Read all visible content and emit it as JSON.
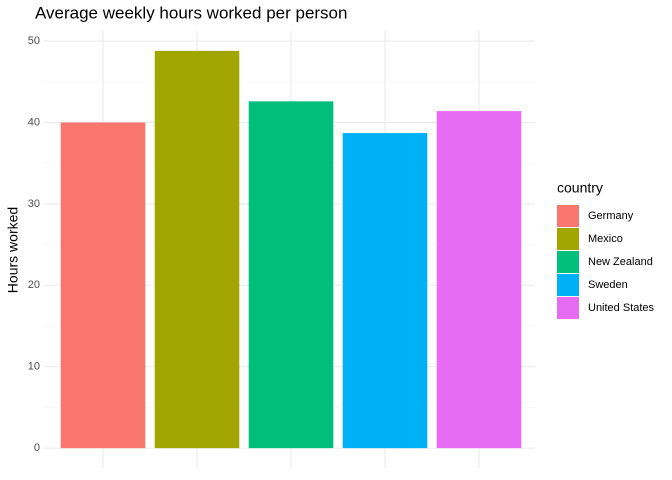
{
  "chart_data": {
    "type": "bar",
    "title": "Average weekly hours worked per person",
    "y_label": "Hours worked",
    "legend_title": "country",
    "series": [
      {
        "name": "Germany",
        "color": "#f8766d",
        "values": [
          40.0
        ]
      },
      {
        "name": "Mexico",
        "color": "#a3a500",
        "values": [
          48.8
        ]
      },
      {
        "name": "New Zealand",
        "color": "#00bf7d",
        "values": [
          42.6
        ]
      },
      {
        "name": "Sweden",
        "color": "#00b0f6",
        "values": [
          38.7
        ]
      },
      {
        "name": "United States",
        "color": "#e76bf3",
        "values": [
          41.4
        ]
      }
    ],
    "ylim": [
      -2.44,
      51.24
    ],
    "yticks": [
      0,
      10,
      20,
      30,
      40,
      50
    ],
    "grid": true,
    "legend_position": "right"
  }
}
